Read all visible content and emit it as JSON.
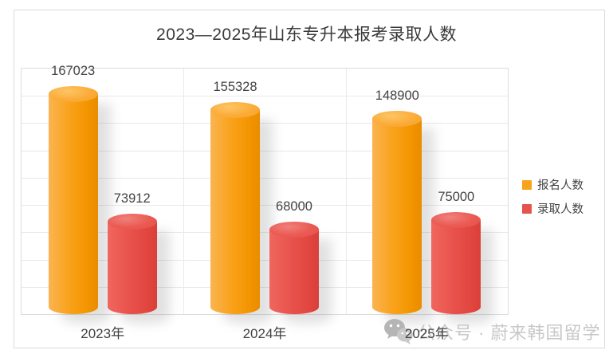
{
  "title": "2023—2025年山东专升本报考录取人数",
  "legend": [
    {
      "label": "报名人数",
      "color": "#f9a21b"
    },
    {
      "label": "录取人数",
      "color": "#e8524c"
    }
  ],
  "watermark": {
    "icon": "wechat-icon",
    "text": "公众号 · 蔚来韩国留学"
  },
  "colors": {
    "applicants_orange": "#f9a21b",
    "admitted_red": "#e8524c",
    "gridline": "#e9e9e9",
    "plot_border": "#dcdcdc",
    "label_text": "#424242",
    "watermark_text": "#c8c8c8"
  },
  "chart_data": {
    "type": "bar",
    "title": "2023—2025年山东专升本报考录取人数",
    "categories": [
      "2023年",
      "2024年",
      "2025年"
    ],
    "series": [
      {
        "name": "报名人数",
        "color": "orange",
        "values": [
          167023,
          155328,
          148900
        ]
      },
      {
        "name": "录取人数",
        "color": "red",
        "values": [
          73912,
          68000,
          75000
        ]
      }
    ],
    "xlabel": "",
    "ylabel": "",
    "ylim": [
      0,
      180000
    ],
    "gridline_step": 20000,
    "grid": true,
    "y_axis_labels_visible": false,
    "legend_position": "right",
    "bar_style": "3d-cylinder",
    "data_labels": true
  }
}
